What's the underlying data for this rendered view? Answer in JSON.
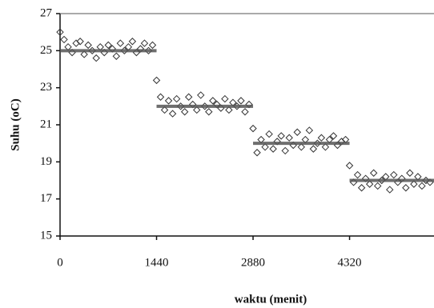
{
  "chart_data": {
    "type": "scatter",
    "xlabel": "waktu (menit)",
    "ylabel": "Suhu (oC)",
    "xlim": [
      0,
      5580
    ],
    "ylim": [
      15,
      27
    ],
    "xticks": [
      0,
      1440,
      2880,
      4320
    ],
    "yticks": [
      15,
      17,
      19,
      21,
      23,
      25,
      27
    ],
    "series": [
      {
        "type": "scatter",
        "color": "#333333",
        "x": [
          0,
          60,
          120,
          180,
          240,
          300,
          360,
          420,
          480,
          540,
          600,
          660,
          720,
          780,
          840,
          900,
          960,
          1020,
          1080,
          1140,
          1200,
          1260,
          1320,
          1380,
          1440,
          1500,
          1560,
          1620,
          1680,
          1740,
          1800,
          1860,
          1920,
          1980,
          2040,
          2100,
          2160,
          2220,
          2280,
          2340,
          2400,
          2460,
          2520,
          2580,
          2640,
          2700,
          2760,
          2820,
          2880,
          2940,
          3000,
          3060,
          3120,
          3180,
          3240,
          3300,
          3360,
          3420,
          3480,
          3540,
          3600,
          3660,
          3720,
          3780,
          3840,
          3900,
          3960,
          4020,
          4080,
          4140,
          4200,
          4260,
          4320,
          4380,
          4440,
          4500,
          4560,
          4620,
          4680,
          4740,
          4800,
          4860,
          4920,
          4980,
          5040,
          5100,
          5160,
          5220,
          5280,
          5340,
          5400,
          5460,
          5520
        ],
        "values": [
          26.0,
          25.6,
          25.2,
          24.9,
          25.4,
          25.5,
          24.8,
          25.3,
          25.0,
          24.6,
          25.2,
          24.9,
          25.3,
          25.1,
          24.7,
          25.4,
          25.0,
          25.2,
          25.5,
          24.9,
          25.1,
          25.4,
          25.0,
          25.3,
          23.4,
          22.5,
          21.8,
          22.3,
          21.6,
          22.4,
          22.0,
          21.7,
          22.5,
          22.1,
          21.8,
          22.6,
          22.0,
          21.7,
          22.3,
          22.1,
          21.9,
          22.4,
          21.8,
          22.2,
          22.0,
          22.3,
          21.7,
          22.1,
          20.8,
          19.5,
          20.2,
          19.8,
          20.5,
          19.7,
          20.1,
          20.4,
          19.6,
          20.3,
          19.9,
          20.6,
          19.8,
          20.2,
          20.7,
          19.7,
          20.0,
          20.3,
          19.8,
          20.2,
          20.4,
          19.9,
          20.1,
          20.2,
          18.8,
          17.9,
          18.3,
          17.6,
          18.1,
          17.8,
          18.4,
          17.7,
          18.0,
          18.2,
          17.5,
          18.3,
          17.9,
          18.1,
          17.6,
          18.4,
          17.8,
          18.2,
          17.7,
          18.0,
          17.9
        ]
      },
      {
        "type": "line",
        "color": "#555555",
        "x": [
          0,
          1440,
          1440,
          1440,
          2880,
          2880,
          2880,
          4320,
          4320,
          4320,
          5580
        ],
        "values": [
          25,
          25,
          null,
          22,
          22,
          null,
          20,
          20,
          null,
          18,
          18
        ]
      }
    ]
  }
}
